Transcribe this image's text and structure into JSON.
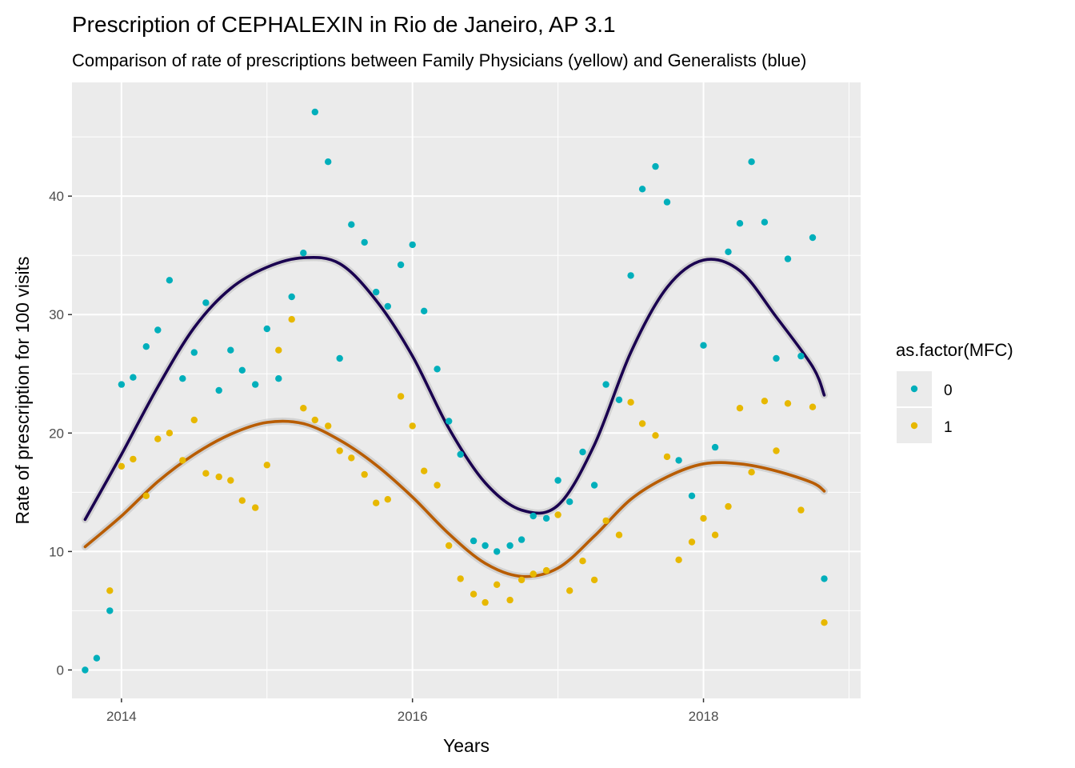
{
  "chart_data": {
    "type": "scatter",
    "title": "Prescription of CEPHALEXIN in Rio de Janeiro, AP 3.1",
    "subtitle": "Comparison of rate of prescriptions between Family Physicians (yellow) and Generalists (blue)",
    "xlabel": "Years",
    "ylabel": "Rate of prescription for 100 visits",
    "xlim": [
      2013.66,
      2019.08
    ],
    "ylim": [
      -2.4,
      49.6
    ],
    "x_ticks": [
      2014,
      2016,
      2018
    ],
    "x_tick_labels": [
      "2014",
      "2016",
      "2018"
    ],
    "y_ticks": [
      0,
      10,
      20,
      30,
      40
    ],
    "y_tick_labels": [
      "0",
      "10",
      "20",
      "30",
      "40"
    ],
    "grid": true,
    "legend": {
      "title": "as.factor(MFC)",
      "position": "right",
      "entries": [
        "0",
        "1"
      ]
    },
    "series": [
      {
        "name": "0",
        "color": "#00AFBB",
        "smooth_color": "#1a0050",
        "x": [
          2013.75,
          2013.83,
          2013.92,
          2014.0,
          2014.08,
          2014.17,
          2014.25,
          2014.33,
          2014.42,
          2014.5,
          2014.58,
          2014.67,
          2014.75,
          2014.83,
          2014.92,
          2015.0,
          2015.08,
          2015.17,
          2015.25,
          2015.33,
          2015.42,
          2015.5,
          2015.58,
          2015.67,
          2015.75,
          2015.83,
          2015.92,
          2016.0,
          2016.08,
          2016.17,
          2016.25,
          2016.33,
          2016.42,
          2016.5,
          2016.58,
          2016.67,
          2016.75,
          2016.83,
          2016.92,
          2017.0,
          2017.08,
          2017.17,
          2017.25,
          2017.33,
          2017.42,
          2017.5,
          2017.58,
          2017.67,
          2017.75,
          2017.83,
          2017.92,
          2018.0,
          2018.08,
          2018.17,
          2018.25,
          2018.33,
          2018.42,
          2018.5,
          2018.58,
          2018.67,
          2018.75,
          2018.83
        ],
        "y": [
          0.0,
          1.0,
          5.0,
          24.1,
          24.7,
          27.3,
          28.7,
          32.9,
          24.6,
          26.8,
          31.0,
          23.6,
          27.0,
          25.3,
          24.1,
          28.8,
          24.6,
          31.5,
          35.2,
          47.1,
          42.9,
          26.3,
          37.6,
          36.1,
          31.9,
          30.7,
          34.2,
          35.9,
          30.3,
          25.4,
          21.0,
          18.2,
          10.9,
          10.5,
          10.0,
          10.5,
          11.0,
          13.0,
          12.8,
          16.0,
          14.2,
          18.4,
          15.6,
          24.1,
          22.8,
          33.3,
          40.6,
          42.5,
          39.5,
          17.7,
          14.7,
          27.4,
          18.8,
          35.3,
          37.7,
          42.9,
          37.8,
          26.3,
          34.7,
          26.5,
          36.5,
          7.7
        ],
        "smooth_x": [
          2013.75,
          2014.0,
          2014.25,
          2014.5,
          2014.75,
          2015.0,
          2015.25,
          2015.5,
          2015.75,
          2016.0,
          2016.25,
          2016.5,
          2016.75,
          2017.0,
          2017.25,
          2017.5,
          2017.75,
          2018.0,
          2018.25,
          2018.5,
          2018.75,
          2018.83
        ],
        "smooth_y": [
          12.7,
          18.2,
          23.9,
          28.9,
          32.2,
          34.0,
          34.8,
          34.3,
          31.2,
          26.5,
          20.4,
          15.8,
          13.5,
          13.9,
          19.0,
          26.8,
          32.3,
          34.6,
          33.7,
          29.8,
          25.6,
          23.2
        ]
      },
      {
        "name": "1",
        "color": "#E7B800",
        "smooth_color": "#b85c00",
        "x": [
          2013.92,
          2014.0,
          2014.08,
          2014.17,
          2014.25,
          2014.33,
          2014.42,
          2014.5,
          2014.58,
          2014.67,
          2014.75,
          2014.83,
          2014.92,
          2015.0,
          2015.08,
          2015.17,
          2015.25,
          2015.33,
          2015.42,
          2015.5,
          2015.58,
          2015.67,
          2015.75,
          2015.83,
          2015.92,
          2016.0,
          2016.08,
          2016.17,
          2016.25,
          2016.33,
          2016.42,
          2016.5,
          2016.58,
          2016.67,
          2016.75,
          2016.83,
          2016.92,
          2017.0,
          2017.08,
          2017.17,
          2017.25,
          2017.33,
          2017.42,
          2017.5,
          2017.58,
          2017.67,
          2017.75,
          2017.83,
          2017.92,
          2018.0,
          2018.08,
          2018.17,
          2018.25,
          2018.33,
          2018.42,
          2018.5,
          2018.58,
          2018.67,
          2018.75,
          2018.83
        ],
        "y": [
          6.7,
          17.2,
          17.8,
          14.7,
          19.5,
          20.0,
          17.7,
          21.1,
          16.6,
          16.3,
          16.0,
          14.3,
          13.7,
          17.3,
          27.0,
          29.6,
          22.1,
          21.1,
          20.6,
          18.5,
          17.9,
          16.5,
          14.1,
          14.4,
          23.1,
          20.6,
          16.8,
          15.6,
          10.5,
          7.7,
          6.4,
          5.7,
          7.2,
          5.9,
          7.6,
          8.1,
          8.4,
          13.1,
          6.7,
          9.2,
          7.6,
          12.6,
          11.4,
          22.6,
          20.8,
          19.8,
          18.0,
          9.3,
          10.8,
          12.8,
          11.4,
          13.8,
          22.1,
          16.7,
          22.7,
          18.5,
          22.5,
          13.5,
          22.2,
          4.0
        ],
        "smooth_x": [
          2013.75,
          2014.0,
          2014.25,
          2014.5,
          2014.75,
          2015.0,
          2015.25,
          2015.5,
          2015.75,
          2016.0,
          2016.25,
          2016.5,
          2016.75,
          2017.0,
          2017.25,
          2017.5,
          2017.75,
          2018.0,
          2018.25,
          2018.5,
          2018.75,
          2018.83
        ],
        "smooth_y": [
          10.4,
          13.0,
          15.9,
          18.2,
          19.9,
          20.9,
          20.8,
          19.4,
          17.3,
          14.6,
          11.5,
          9.0,
          7.9,
          8.6,
          11.3,
          14.4,
          16.3,
          17.4,
          17.4,
          16.8,
          15.8,
          15.1
        ]
      }
    ]
  }
}
